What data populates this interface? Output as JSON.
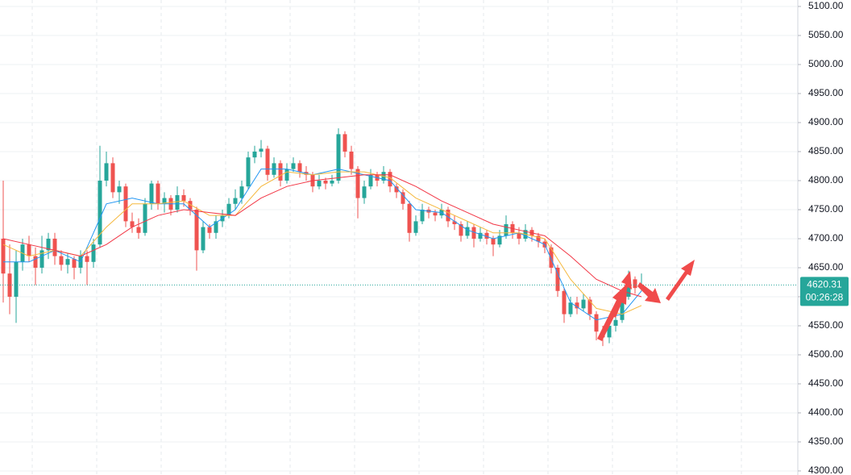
{
  "chart_data": {
    "type": "candlestick",
    "ylim": [
      4293,
      5111.1
    ],
    "yticks": [
      {
        "value": 4300,
        "label": "4300.00"
      },
      {
        "value": 4350,
        "label": "4350.00"
      },
      {
        "value": 4400,
        "label": "4400.00"
      },
      {
        "value": 4450,
        "label": "4450.00"
      },
      {
        "value": 4500,
        "label": "4500.00"
      },
      {
        "value": 4550,
        "label": "4550.00"
      },
      {
        "value": 4600,
        "label": "4600.00"
      },
      {
        "value": 4650,
        "label": "4650.00"
      },
      {
        "value": 4700,
        "label": "4700.00"
      },
      {
        "value": 4750,
        "label": "4750.00"
      },
      {
        "value": 4800,
        "label": "4800.00"
      },
      {
        "value": 4850,
        "label": "4850.00"
      },
      {
        "value": 4900,
        "label": "4900.00"
      },
      {
        "value": 4950,
        "label": "4950.00"
      },
      {
        "value": 5000,
        "label": "5000.00"
      },
      {
        "value": 5050,
        "label": "5050.00"
      },
      {
        "value": 5100,
        "label": "5100.00"
      }
    ],
    "grid": true,
    "up_color": "#26a69a",
    "down_color": "#ef5350",
    "candles": [
      [
        4700,
        4800,
        4590,
        4640
      ],
      [
        4640,
        4690,
        4570,
        4600
      ],
      [
        4600,
        4680,
        4555,
        4660
      ],
      [
        4660,
        4700,
        4645,
        4690
      ],
      [
        4690,
        4705,
        4660,
        4670
      ],
      [
        4670,
        4685,
        4620,
        4650
      ],
      [
        4650,
        4705,
        4640,
        4680
      ],
      [
        4680,
        4710,
        4665,
        4700
      ],
      [
        4700,
        4710,
        4655,
        4670
      ],
      [
        4670,
        4680,
        4645,
        4655
      ],
      [
        4655,
        4675,
        4640,
        4665
      ],
      [
        4665,
        4670,
        4630,
        4650
      ],
      [
        4650,
        4680,
        4640,
        4670
      ],
      [
        4670,
        4680,
        4620,
        4660
      ],
      [
        4660,
        4700,
        4650,
        4690
      ],
      [
        4690,
        4860,
        4685,
        4800
      ],
      [
        4800,
        4850,
        4790,
        4830
      ],
      [
        4830,
        4840,
        4770,
        4780
      ],
      [
        4780,
        4800,
        4760,
        4790
      ],
      [
        4790,
        4795,
        4720,
        4730
      ],
      [
        4730,
        4745,
        4710,
        4720
      ],
      [
        4720,
        4735,
        4700,
        4710
      ],
      [
        4710,
        4770,
        4705,
        4760
      ],
      [
        4760,
        4800,
        4750,
        4795
      ],
      [
        4795,
        4800,
        4750,
        4760
      ],
      [
        4760,
        4780,
        4745,
        4770
      ],
      [
        4770,
        4775,
        4740,
        4750
      ],
      [
        4750,
        4790,
        4745,
        4775
      ],
      [
        4775,
        4785,
        4755,
        4765
      ],
      [
        4765,
        4770,
        4740,
        4750
      ],
      [
        4750,
        4755,
        4645,
        4680
      ],
      [
        4680,
        4730,
        4675,
        4720
      ],
      [
        4720,
        4725,
        4700,
        4710
      ],
      [
        4710,
        4740,
        4700,
        4730
      ],
      [
        4730,
        4750,
        4720,
        4740
      ],
      [
        4740,
        4770,
        4735,
        4760
      ],
      [
        4760,
        4785,
        4750,
        4770
      ],
      [
        4770,
        4800,
        4760,
        4790
      ],
      [
        4790,
        4850,
        4785,
        4840
      ],
      [
        4840,
        4860,
        4830,
        4850
      ],
      [
        4850,
        4870,
        4840,
        4855
      ],
      [
        4855,
        4860,
        4800,
        4810
      ],
      [
        4810,
        4840,
        4805,
        4830
      ],
      [
        4830,
        4835,
        4790,
        4800
      ],
      [
        4800,
        4830,
        4795,
        4820
      ],
      [
        4820,
        4840,
        4815,
        4830
      ],
      [
        4830,
        4835,
        4805,
        4815
      ],
      [
        4815,
        4825,
        4800,
        4810
      ],
      [
        4810,
        4815,
        4780,
        4790
      ],
      [
        4790,
        4810,
        4785,
        4800
      ],
      [
        4800,
        4805,
        4785,
        4795
      ],
      [
        4795,
        4810,
        4790,
        4800
      ],
      [
        4800,
        4890,
        4795,
        4880
      ],
      [
        4880,
        4885,
        4840,
        4850
      ],
      [
        4850,
        4860,
        4810,
        4820
      ],
      [
        4820,
        4825,
        4735,
        4770
      ],
      [
        4770,
        4800,
        4760,
        4790
      ],
      [
        4790,
        4820,
        4785,
        4810
      ],
      [
        4810,
        4815,
        4790,
        4800
      ],
      [
        4800,
        4825,
        4795,
        4815
      ],
      [
        4815,
        4820,
        4780,
        4790
      ],
      [
        4790,
        4795,
        4770,
        4780
      ],
      [
        4780,
        4785,
        4750,
        4760
      ],
      [
        4760,
        4765,
        4695,
        4710
      ],
      [
        4710,
        4740,
        4705,
        4730
      ],
      [
        4730,
        4760,
        4725,
        4750
      ],
      [
        4750,
        4755,
        4735,
        4745
      ],
      [
        4745,
        4750,
        4730,
        4740
      ],
      [
        4740,
        4760,
        4735,
        4750
      ],
      [
        4750,
        4755,
        4720,
        4730
      ],
      [
        4730,
        4740,
        4715,
        4725
      ],
      [
        4725,
        4730,
        4695,
        4705
      ],
      [
        4705,
        4730,
        4700,
        4720
      ],
      [
        4720,
        4725,
        4685,
        4700
      ],
      [
        4700,
        4720,
        4695,
        4710
      ],
      [
        4710,
        4715,
        4690,
        4700
      ],
      [
        4700,
        4705,
        4670,
        4690
      ],
      [
        4690,
        4715,
        4685,
        4705
      ],
      [
        4705,
        4740,
        4700,
        4725
      ],
      [
        4725,
        4730,
        4700,
        4710
      ],
      [
        4710,
        4720,
        4690,
        4700
      ],
      [
        4700,
        4725,
        4695,
        4715
      ],
      [
        4715,
        4720,
        4695,
        4705
      ],
      [
        4705,
        4710,
        4685,
        4695
      ],
      [
        4695,
        4700,
        4675,
        4685
      ],
      [
        4685,
        4690,
        4640,
        4650
      ],
      [
        4650,
        4655,
        4600,
        4610
      ],
      [
        4610,
        4615,
        4555,
        4570
      ],
      [
        4570,
        4600,
        4565,
        4590
      ],
      [
        4590,
        4600,
        4570,
        4580
      ],
      [
        4580,
        4605,
        4575,
        4595
      ],
      [
        4595,
        4600,
        4560,
        4570
      ],
      [
        4570,
        4575,
        4525,
        4540
      ],
      [
        4540,
        4550,
        4515,
        4530
      ],
      [
        4530,
        4560,
        4520,
        4550
      ],
      [
        4550,
        4575,
        4540,
        4560
      ],
      [
        4560,
        4610,
        4555,
        4600
      ],
      [
        4600,
        4645,
        4595,
        4630
      ],
      [
        4630,
        4635,
        4605,
        4615
      ],
      [
        4615,
        4640,
        4610,
        4620.31
      ]
    ],
    "series": [
      {
        "color": "#2196f3",
        "x": [
          0,
          4,
          8,
          12,
          16,
          20,
          24,
          28,
          32,
          36,
          40,
          44,
          48,
          52,
          56,
          60,
          64,
          68,
          72,
          76,
          80,
          84,
          88,
          92,
          96,
          99
        ],
        "values": [
          4660,
          4660,
          4680,
          4660,
          4760,
          4770,
          4760,
          4760,
          4720,
          4750,
          4820,
          4820,
          4810,
          4820,
          4810,
          4800,
          4750,
          4745,
          4715,
          4700,
          4710,
          4690,
          4590,
          4560,
          4570,
          4610
        ]
      },
      {
        "color": "#f5b83d",
        "x": [
          0,
          4,
          8,
          12,
          16,
          20,
          24,
          28,
          32,
          36,
          40,
          44,
          48,
          52,
          56,
          60,
          64,
          68,
          72,
          76,
          80,
          84,
          88,
          92,
          96,
          99
        ],
        "values": [
          4690,
          4670,
          4680,
          4670,
          4720,
          4760,
          4760,
          4765,
          4740,
          4740,
          4790,
          4815,
          4810,
          4815,
          4815,
          4805,
          4770,
          4750,
          4730,
          4710,
          4710,
          4700,
          4630,
          4580,
          4570,
          4585
        ]
      },
      {
        "color": "#f23645",
        "x": [
          0,
          4,
          8,
          12,
          16,
          20,
          24,
          28,
          32,
          36,
          40,
          44,
          48,
          52,
          56,
          60,
          64,
          68,
          72,
          76,
          80,
          84,
          88,
          92,
          96,
          99
        ],
        "values": [
          4700,
          4690,
          4680,
          4670,
          4690,
          4720,
          4740,
          4750,
          4745,
          4740,
          4770,
          4790,
          4800,
          4805,
          4810,
          4810,
          4790,
          4765,
          4745,
          4725,
          4715,
          4705,
          4670,
          4630,
          4610,
          4600
        ]
      }
    ],
    "last_price": 4620.31,
    "countdown": "00:26:28"
  }
}
